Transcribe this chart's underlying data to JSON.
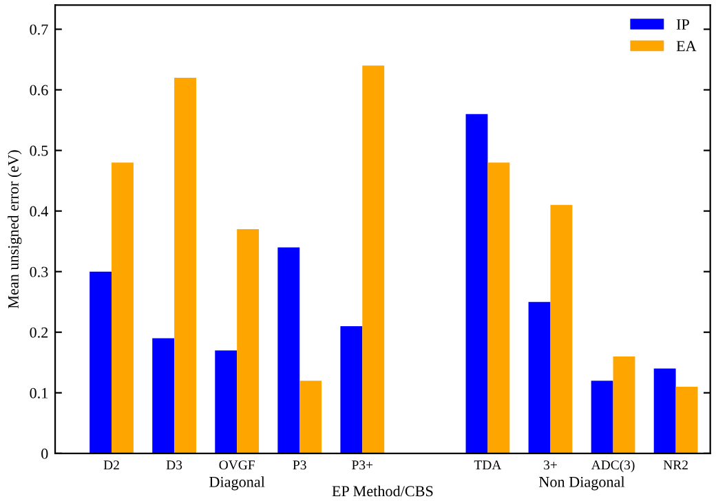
{
  "chart_data": {
    "type": "bar",
    "xlabel": "EP Method/CBS",
    "ylabel": "Mean unsigned error (eV)",
    "categories": [
      "D2",
      "D3",
      "OVGF",
      "P3",
      "P3+",
      null,
      "TDA",
      "3+",
      "ADC(3)",
      "NR2"
    ],
    "series": [
      {
        "name": "IP",
        "color": "#0000ff",
        "values": [
          0.3,
          0.19,
          0.17,
          0.34,
          0.21,
          null,
          0.56,
          0.25,
          0.12,
          0.14
        ]
      },
      {
        "name": "EA",
        "color": "#ffa500",
        "values": [
          0.48,
          0.62,
          0.37,
          0.12,
          0.64,
          null,
          0.48,
          0.41,
          0.16,
          0.11
        ]
      }
    ],
    "ylim": [
      0,
      0.74
    ],
    "yticks": [
      0,
      {
        "value": 0.1,
        "label": "0.1"
      },
      {
        "value": 0.2,
        "label": "0.2"
      },
      {
        "value": 0.3,
        "label": "0.3"
      },
      {
        "value": 0.4,
        "label": "0.4"
      },
      {
        "value": 0.5,
        "label": "0.5"
      },
      {
        "value": 0.6,
        "label": "0.6"
      },
      {
        "value": 0.7,
        "label": "0.7"
      }
    ],
    "annotations": [
      "Diagonal",
      "Non Diagonal"
    ],
    "legend": "top right",
    "grid": false
  }
}
